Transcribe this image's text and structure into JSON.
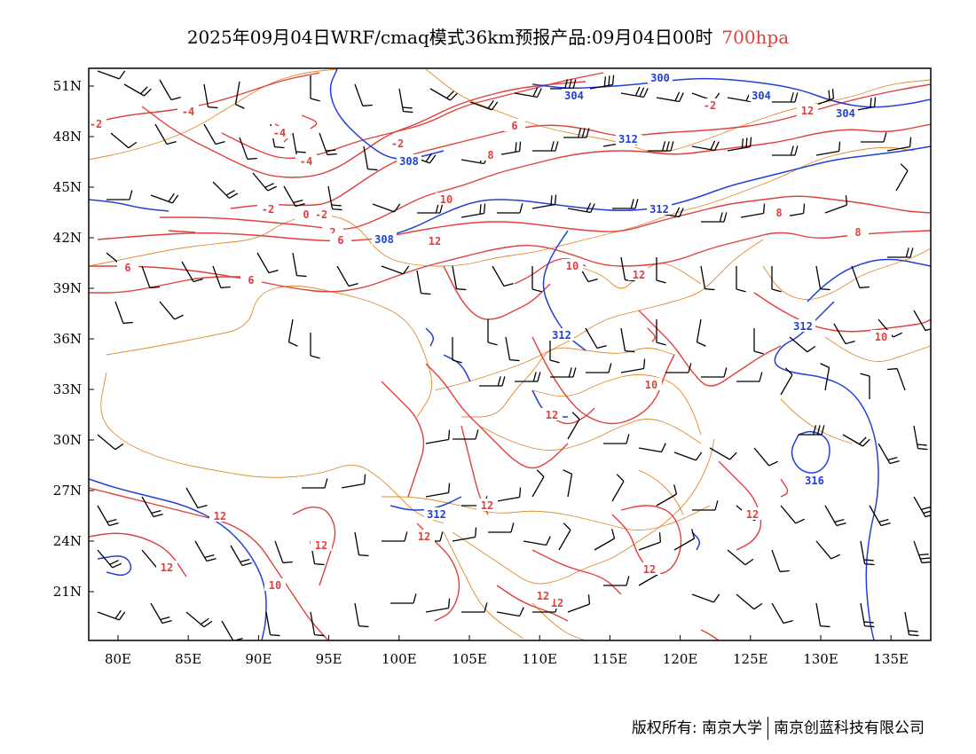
{
  "title": {
    "main": "2025年09月04日WRF/cmaq模式36km预报产品:09月04日00时",
    "level": "700hpa"
  },
  "colors": {
    "temperature": "#e0403c",
    "geopotential": "#2040d8",
    "boundary": "#e08a2c",
    "wind": "#000000"
  },
  "lon_ticks": [
    "80E",
    "85E",
    "90E",
    "95E",
    "100E",
    "105E",
    "110E",
    "115E",
    "120E",
    "125E",
    "130E",
    "135E"
  ],
  "lat_ticks": [
    "51N",
    "48N",
    "45N",
    "42N",
    "39N",
    "36N",
    "33N",
    "30N",
    "27N",
    "24N",
    "21N"
  ],
  "temp_labels": [
    "-2",
    "-4",
    "-4",
    "-4",
    "-2",
    "-2",
    "0",
    "-2",
    "2",
    "6",
    "8",
    "6",
    "10",
    "12",
    "12",
    "10",
    "8",
    "8",
    "6",
    "6",
    "10",
    "10",
    "12",
    "12",
    "12",
    "12",
    "12",
    "12",
    "12",
    "12",
    "12",
    "12",
    "10",
    "12",
    "-2",
    "-4",
    "8"
  ],
  "height_labels": [
    "300",
    "304",
    "304",
    "308",
    "304",
    "308",
    "312",
    "312",
    "312",
    "312",
    "316",
    "312",
    "308",
    "312"
  ],
  "footer": {
    "copyright": "版权所有: 南京大学",
    "company": "南京创蓝科技有限公司"
  }
}
